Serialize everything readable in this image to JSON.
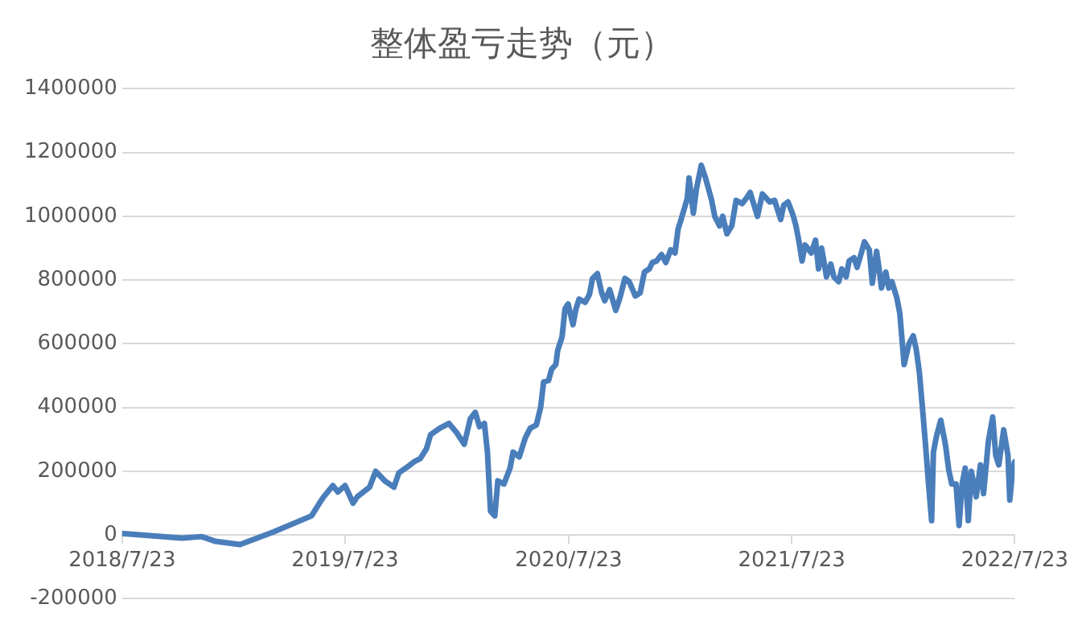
{
  "chart_data": {
    "type": "line",
    "title": "整体盈亏走势（元）",
    "x": [
      "2018-07-23",
      "2018-10-29",
      "2018-11-30",
      "2018-12-23",
      "2019-02-01",
      "2019-03-28",
      "2019-05-29",
      "2019-06-11",
      "2019-06-18",
      "2019-07-03",
      "2019-07-11",
      "2019-07-23",
      "2019-08-05",
      "2019-08-12",
      "2019-09-01",
      "2019-09-11",
      "2019-09-26",
      "2019-10-11",
      "2019-10-19",
      "2019-11-03",
      "2019-11-13",
      "2019-11-23",
      "2019-12-03",
      "2019-12-10",
      "2019-12-25",
      "2020-01-09",
      "2020-01-22",
      "2020-02-03",
      "2020-02-13",
      "2020-02-21",
      "2020-02-28",
      "2020-03-07",
      "2020-03-12",
      "2020-03-17",
      "2020-03-24",
      "2020-03-29",
      "2020-04-08",
      "2020-04-18",
      "2020-04-23",
      "2020-05-03",
      "2020-05-13",
      "2020-05-21",
      "2020-05-31",
      "2020-06-07",
      "2020-06-12",
      "2020-06-20",
      "2020-06-25",
      "2020-07-02",
      "2020-07-05",
      "2020-07-12",
      "2020-07-17",
      "2020-07-22",
      "2020-07-30",
      "2020-08-04",
      "2020-08-09",
      "2020-08-19",
      "2020-08-26",
      "2020-08-31",
      "2020-09-08",
      "2020-09-15",
      "2020-09-20",
      "2020-09-28",
      "2020-10-08",
      "2020-10-15",
      "2020-10-23",
      "2020-10-30",
      "2020-11-09",
      "2020-11-17",
      "2020-11-24",
      "2020-12-02",
      "2020-12-07",
      "2020-12-14",
      "2020-12-22",
      "2020-12-29",
      "2021-01-06",
      "2021-01-13",
      "2021-01-18",
      "2021-01-23",
      "2021-02-02",
      "2021-02-05",
      "2021-02-12",
      "2021-02-17",
      "2021-02-25",
      "2021-03-04",
      "2021-03-14",
      "2021-03-19",
      "2021-03-27",
      "2021-04-01",
      "2021-04-08",
      "2021-04-16",
      "2021-04-23",
      "2021-05-03",
      "2021-05-11",
      "2021-05-16",
      "2021-05-28",
      "2021-06-05",
      "2021-06-17",
      "2021-06-25",
      "2021-07-05",
      "2021-07-10",
      "2021-07-17",
      "2021-07-25",
      "2021-07-30",
      "2021-08-04",
      "2021-08-09",
      "2021-08-14",
      "2021-08-24",
      "2021-08-31",
      "2021-09-05",
      "2021-09-10",
      "2021-09-18",
      "2021-09-25",
      "2021-09-30",
      "2021-10-08",
      "2021-10-13",
      "2021-10-20",
      "2021-10-25",
      "2021-11-02",
      "2021-11-07",
      "2021-11-14",
      "2021-11-19",
      "2021-11-27",
      "2021-12-02",
      "2021-12-09",
      "2021-12-12",
      "2021-12-17",
      "2021-12-24",
      "2021-12-29",
      "2022-01-03",
      "2022-01-11",
      "2022-01-16",
      "2022-01-23",
      "2022-01-31",
      "2022-02-07",
      "2022-02-12",
      "2022-02-17",
      "2022-02-22",
      "2022-02-27",
      "2022-03-04",
      "2022-03-09",
      "2022-03-12",
      "2022-03-17",
      "2022-03-24",
      "2022-04-01",
      "2022-04-06",
      "2022-04-11",
      "2022-04-18",
      "2022-04-23",
      "2022-04-28",
      "2022-05-03",
      "2022-05-08",
      "2022-05-13",
      "2022-05-21",
      "2022-05-28",
      "2022-06-02",
      "2022-06-10",
      "2022-06-17",
      "2022-06-22",
      "2022-06-27",
      "2022-07-05",
      "2022-07-12",
      "2022-07-15",
      "2022-07-20",
      "2022-07-23"
    ],
    "series": [
      {
        "color": "#4a7ebb",
        "values": [
          5000,
          -10000,
          -5000,
          -20000,
          -30000,
          10000,
          60000,
          100000,
          120000,
          155000,
          135000,
          155000,
          100000,
          120000,
          150000,
          200000,
          170000,
          150000,
          195000,
          215000,
          230000,
          240000,
          270000,
          315000,
          335000,
          350000,
          320000,
          285000,
          365000,
          385000,
          340000,
          350000,
          260000,
          75000,
          60000,
          170000,
          160000,
          210000,
          260000,
          245000,
          305000,
          335000,
          345000,
          400000,
          480000,
          485000,
          520000,
          535000,
          580000,
          620000,
          710000,
          725000,
          660000,
          710000,
          740000,
          730000,
          755000,
          805000,
          820000,
          760000,
          735000,
          770000,
          705000,
          745000,
          805000,
          795000,
          750000,
          760000,
          825000,
          835000,
          855000,
          860000,
          880000,
          855000,
          895000,
          885000,
          960000,
          990000,
          1055000,
          1120000,
          1010000,
          1085000,
          1160000,
          1120000,
          1050000,
          1000000,
          970000,
          1000000,
          945000,
          970000,
          1050000,
          1040000,
          1060000,
          1075000,
          1000000,
          1070000,
          1045000,
          1050000,
          990000,
          1035000,
          1045000,
          1005000,
          970000,
          920000,
          860000,
          910000,
          885000,
          925000,
          835000,
          900000,
          810000,
          850000,
          810000,
          795000,
          835000,
          810000,
          860000,
          870000,
          840000,
          885000,
          920000,
          895000,
          790000,
          890000,
          850000,
          775000,
          825000,
          775000,
          795000,
          745000,
          695000,
          535000,
          600000,
          625000,
          580000,
          510000,
          400000,
          285000,
          160000,
          45000,
          260000,
          310000,
          360000,
          280000,
          205000,
          160000,
          160000,
          30000,
          160000,
          210000,
          45000,
          200000,
          120000,
          220000,
          130000,
          295000,
          370000,
          250000,
          220000,
          330000,
          250000,
          110000,
          210000,
          230000
        ]
      }
    ],
    "xlim": [
      "2018-07-23",
      "2022-07-23"
    ],
    "xticks": [
      {
        "value": "2018-07-23",
        "label": "2018/7/23"
      },
      {
        "value": "2019-07-23",
        "label": "2019/7/23"
      },
      {
        "value": "2020-07-23",
        "label": "2020/7/23"
      },
      {
        "value": "2021-07-23",
        "label": "2021/7/23"
      },
      {
        "value": "2022-07-23",
        "label": "2022/7/23"
      }
    ],
    "ylim": [
      -200000,
      1400000
    ],
    "yticks": [
      -200000,
      0,
      200000,
      400000,
      600000,
      800000,
      1000000,
      1200000,
      1400000
    ],
    "grid": "y",
    "legend": false,
    "marker": "none",
    "line_style": "solid"
  }
}
